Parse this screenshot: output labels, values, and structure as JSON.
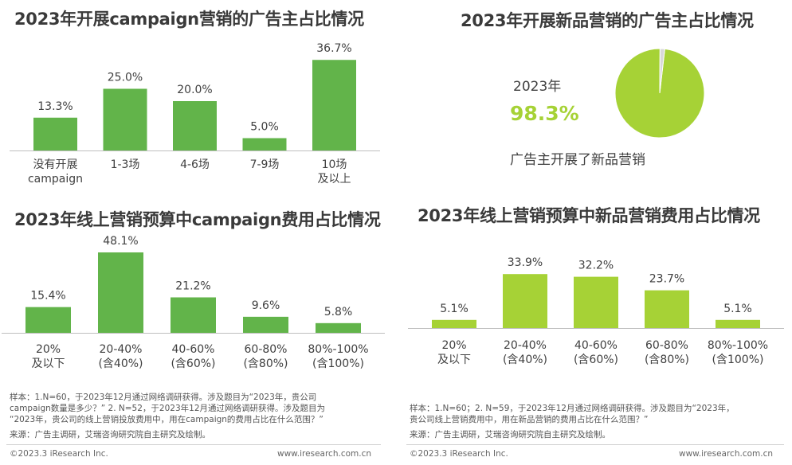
{
  "colors": {
    "green_dark": "#62b44a",
    "green_light": "#a6d236",
    "text": "#404040",
    "title": "#3a3a3a"
  },
  "chart_data": [
    {
      "type": "bar",
      "title": "2023年开展campaign营销的广告主占比情况",
      "categories": [
        [
          "没有开展",
          "campaign"
        ],
        [
          "1-3场"
        ],
        [
          "4-6场"
        ],
        [
          "7-9场"
        ],
        [
          "10场",
          "及以上"
        ]
      ],
      "values": [
        13.3,
        25.0,
        20.0,
        5.0,
        36.7
      ],
      "labels": [
        "13.3%",
        "25.0%",
        "20.0%",
        "5.0%",
        "36.7%"
      ],
      "color": "#62b44a"
    },
    {
      "type": "pie",
      "title": "2023年开展新品营销的广告主占比情况",
      "values": [
        98.3,
        1.7
      ],
      "colors": [
        "#a6d236",
        "#d9d9d9"
      ],
      "year_label": "2023年",
      "big_value": "98.3%",
      "caption": "广告主开展了新品营销"
    },
    {
      "type": "bar",
      "title": "2023年线上营销预算中campaign费用占比情况",
      "categories": [
        [
          "20%",
          "及以下"
        ],
        [
          "20-40%",
          "(含40%)"
        ],
        [
          "40-60%",
          "(含60%)"
        ],
        [
          "60-80%",
          "(含80%)"
        ],
        [
          "80%-100%",
          "(含100%)"
        ]
      ],
      "values": [
        15.4,
        48.1,
        21.2,
        9.6,
        5.8
      ],
      "labels": [
        "15.4%",
        "48.1%",
        "21.2%",
        "9.6%",
        "5.8%"
      ],
      "color": "#62b44a"
    },
    {
      "type": "bar",
      "title": "2023年线上营销预算中新品营销费用占比情况",
      "categories": [
        [
          "20%",
          "及以下"
        ],
        [
          "20-40%",
          "(含40%)"
        ],
        [
          "40-60%",
          "(含60%)"
        ],
        [
          "60-80%",
          "(含80%)"
        ],
        [
          "80%-100%",
          "(含100%)"
        ]
      ],
      "values": [
        5.1,
        33.9,
        32.2,
        23.7,
        5.1
      ],
      "labels": [
        "5.1%",
        "33.9%",
        "32.2%",
        "23.7%",
        "5.1%"
      ],
      "color": "#a6d236"
    }
  ],
  "footer": {
    "left_note_1": "样本：1.N=60，于2023年12月通过网络调研获得。涉及题目为“2023年，贵公司",
    "left_note_2": "campaign数量是多少？” 2. N=52，于2023年12月通过网络调研获得。涉及题目为",
    "left_note_3": "“2023年，贵公司的线上营销投放费用中，用在campaign的费用占比在什么范围？”",
    "left_source": "来源：广告主调研，艾瑞咨询研究院自主研究及绘制。",
    "right_note_1": "样本：1.N=60；2. N=59，于2023年12月通过网络调研获得。涉及题目为“2023年，",
    "right_note_2": "贵公司线上营销费用中，用在新品营销的费用占比在什么范围？”",
    "right_source": "来源：广告主调研，艾瑞咨询研究院自主研究及绘制。",
    "copyright_left": "©2023.3 iResearch Inc.",
    "website_left": "www.iresearch.com.cn",
    "copyright_right": "©2023.3 iResearch Inc.",
    "website_right": "www.iresearch.com.cn"
  }
}
